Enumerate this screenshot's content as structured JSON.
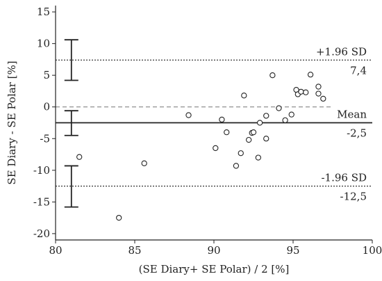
{
  "chart_data": {
    "type": "scatter",
    "title": "",
    "xlabel": "(SE Diary+ SE Polar) / 2 [%]",
    "ylabel": "SE Diary - SE Polar [%]",
    "xlim": [
      80,
      100
    ],
    "ylim": [
      -21,
      16
    ],
    "xticks": [
      80,
      85,
      90,
      95,
      100
    ],
    "yticks": [
      15,
      10,
      5,
      0,
      -5,
      -10,
      -15,
      -20
    ],
    "grid": false,
    "points": [
      {
        "x": 81.5,
        "y": -7.9
      },
      {
        "x": 84.0,
        "y": -17.5
      },
      {
        "x": 85.6,
        "y": -8.9
      },
      {
        "x": 88.4,
        "y": -1.3
      },
      {
        "x": 90.1,
        "y": -6.5
      },
      {
        "x": 90.5,
        "y": -2.0
      },
      {
        "x": 90.8,
        "y": -4.0
      },
      {
        "x": 91.4,
        "y": -9.3
      },
      {
        "x": 91.7,
        "y": -7.3
      },
      {
        "x": 91.9,
        "y": 1.8
      },
      {
        "x": 92.2,
        "y": -5.2
      },
      {
        "x": 92.4,
        "y": -4.1
      },
      {
        "x": 92.5,
        "y": -4.0
      },
      {
        "x": 92.8,
        "y": -8.0
      },
      {
        "x": 92.9,
        "y": -2.5
      },
      {
        "x": 93.3,
        "y": -1.4
      },
      {
        "x": 93.3,
        "y": -5.0
      },
      {
        "x": 93.7,
        "y": 5.0
      },
      {
        "x": 94.1,
        "y": -0.2
      },
      {
        "x": 94.5,
        "y": -2.1
      },
      {
        "x": 94.9,
        "y": -1.2
      },
      {
        "x": 95.2,
        "y": 2.7
      },
      {
        "x": 95.3,
        "y": 2.0
      },
      {
        "x": 95.5,
        "y": 2.4
      },
      {
        "x": 95.8,
        "y": 2.3
      },
      {
        "x": 96.1,
        "y": 5.1
      },
      {
        "x": 96.6,
        "y": 3.2
      },
      {
        "x": 96.6,
        "y": 2.1
      },
      {
        "x": 96.9,
        "y": 1.3
      }
    ],
    "reference_lines": [
      {
        "name": "upper-loa",
        "y": 7.4,
        "style": "dotted",
        "label_top": "+1.96 SD",
        "label_bottom": "7,4"
      },
      {
        "name": "zero",
        "y": 0,
        "style": "dashed",
        "label_top": "",
        "label_bottom": ""
      },
      {
        "name": "mean",
        "y": -2.5,
        "style": "solid",
        "label_top": "Mean",
        "label_bottom": "-2,5"
      },
      {
        "name": "lower-loa",
        "y": -12.5,
        "style": "dotted",
        "label_top": "-1.96 SD",
        "label_bottom": "-12,5"
      }
    ],
    "error_bars": [
      {
        "x": 81.0,
        "low": 4.2,
        "high": 10.6
      },
      {
        "x": 81.0,
        "low": -4.5,
        "high": -0.6
      },
      {
        "x": 81.0,
        "low": -15.8,
        "high": -9.3
      }
    ]
  }
}
